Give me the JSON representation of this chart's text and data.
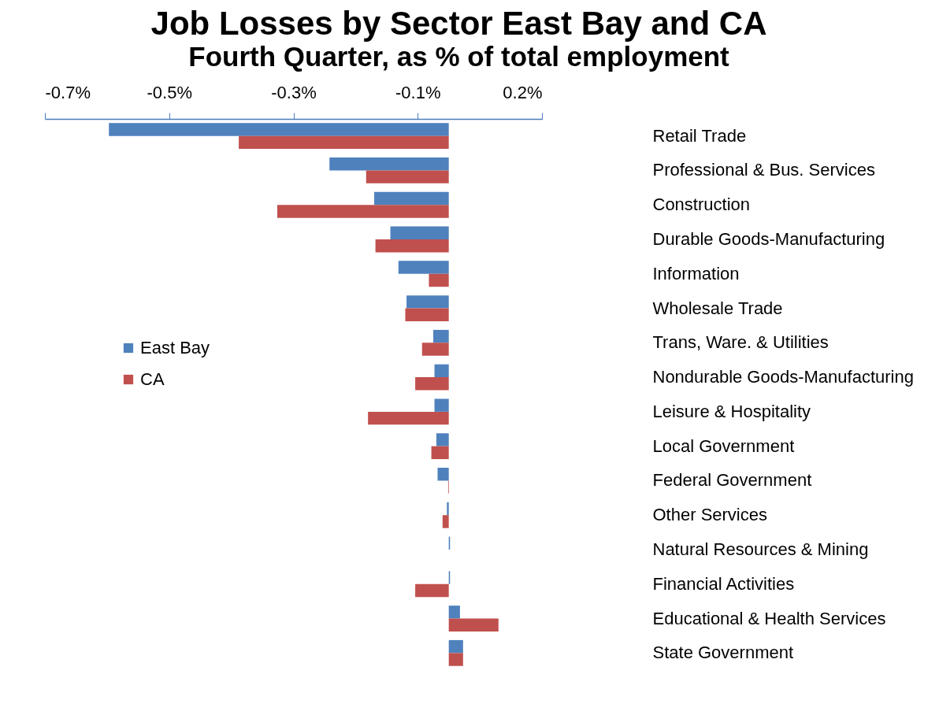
{
  "chart_data": {
    "type": "bar",
    "orientation": "horizontal",
    "title": "Job Losses by Sector East Bay and CA",
    "subtitle": "Fourth Quarter, as % of total employment",
    "categories": [
      "Retail Trade",
      "Professional & Bus. Services",
      "Construction",
      "Durable Goods-Manufacturing",
      "Information",
      "Wholesale Trade",
      "Trans, Ware. & Utilities",
      "Nondurable Goods-Manufacturing",
      "Leisure & Hospitality",
      "Local Government",
      "Federal Government",
      "Other Services",
      "Natural Resources & Mining",
      "Financial Activities",
      "Educational & Health Services",
      "State Government"
    ],
    "series": [
      {
        "name": "East Bay",
        "color": "#4f81bd",
        "values": [
          -0.547,
          -0.192,
          -0.12,
          -0.094,
          -0.081,
          -0.068,
          -0.025,
          -0.023,
          -0.023,
          -0.02,
          -0.018,
          -0.003,
          0.002,
          0.002,
          0.018,
          0.023
        ]
      },
      {
        "name": "CA",
        "color": "#c0504d",
        "values": [
          -0.338,
          -0.133,
          -0.276,
          -0.118,
          -0.032,
          -0.07,
          -0.043,
          -0.054,
          -0.13,
          -0.028,
          -0.001,
          -0.01,
          null,
          -0.054,
          0.08,
          0.023
        ]
      }
    ],
    "xlim": [
      -0.65,
      0.15
    ],
    "xticks": [
      {
        "value": -0.65,
        "label": "-0.7%"
      },
      {
        "value": -0.45,
        "label": "-0.5%"
      },
      {
        "value": -0.25,
        "label": "-0.3%"
      },
      {
        "value": -0.05,
        "label": "-0.1%"
      },
      {
        "value": 0.15,
        "label": "0.2%"
      }
    ],
    "grid": false,
    "legend": "left"
  }
}
